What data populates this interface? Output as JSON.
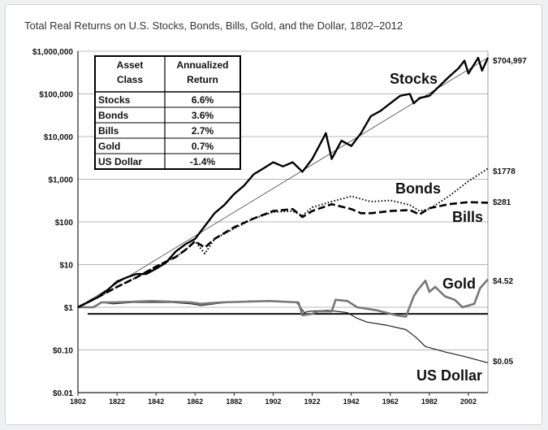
{
  "title": "Total Real Returns on U.S. Stocks, Bonds, Bills, Gold, and the Dollar, 1802–2012",
  "chart_data": {
    "type": "line",
    "title": "Total Real Returns on U.S. Stocks, Bonds, Bills, Gold, and the Dollar, 1802–2012",
    "xlabel": "",
    "ylabel": "",
    "y_scale": "log",
    "xlim": [
      1802,
      2012
    ],
    "ylim": [
      0.01,
      1000000
    ],
    "grid": true,
    "x_ticks": [
      1802,
      1822,
      1842,
      1862,
      1882,
      1902,
      1922,
      1942,
      1962,
      1982,
      2002
    ],
    "x_tick_labels": [
      "1802",
      "1822",
      "1842",
      "1862",
      "1882",
      "1902",
      "1922",
      "1942",
      "1962",
      "1982",
      "2002"
    ],
    "y_ticks": [
      0.01,
      0.1,
      1,
      10,
      100,
      1000,
      10000,
      100000,
      1000000
    ],
    "y_tick_labels": [
      "$0.01",
      "$0.10",
      "$1",
      "$10",
      "$100",
      "$1,000",
      "$10,000",
      "$100,000",
      "$1,000,000"
    ],
    "reference_line": {
      "y": 0.7,
      "x_start": 1807,
      "x_end": 2012
    },
    "series": [
      {
        "name": "Stocks",
        "end_label": "$704,997",
        "style": "solid-thick",
        "x": [
          1802,
          1807,
          1812,
          1817,
          1822,
          1827,
          1832,
          1837,
          1842,
          1847,
          1852,
          1857,
          1862,
          1867,
          1872,
          1877,
          1882,
          1887,
          1892,
          1897,
          1902,
          1907,
          1912,
          1917,
          1922,
          1927,
          1929,
          1932,
          1937,
          1942,
          1947,
          1952,
          1957,
          1962,
          1967,
          1972,
          1974,
          1977,
          1982,
          1987,
          1992,
          1997,
          2000,
          2002,
          2007,
          2009,
          2012
        ],
        "values": [
          1,
          1.3,
          1.7,
          2.5,
          4,
          5,
          6,
          6,
          8,
          11,
          20,
          30,
          40,
          80,
          160,
          250,
          450,
          700,
          1300,
          1800,
          2500,
          2000,
          2500,
          1500,
          3000,
          8000,
          12000,
          3000,
          8000,
          6000,
          12000,
          30000,
          40000,
          60000,
          90000,
          100000,
          60000,
          80000,
          90000,
          150000,
          250000,
          400000,
          600000,
          300000,
          700000,
          350000,
          704997
        ]
      },
      {
        "name": "Bonds",
        "end_label": "$1778",
        "style": "dotted",
        "x": [
          1802,
          1812,
          1822,
          1832,
          1842,
          1852,
          1857,
          1862,
          1867,
          1872,
          1882,
          1892,
          1902,
          1912,
          1917,
          1922,
          1932,
          1942,
          1952,
          1962,
          1972,
          1977,
          1982,
          1992,
          2002,
          2012
        ],
        "values": [
          1,
          1.7,
          3,
          5,
          9,
          15,
          22,
          35,
          18,
          40,
          70,
          120,
          170,
          180,
          140,
          220,
          300,
          400,
          300,
          320,
          250,
          180,
          200,
          400,
          900,
          1778
        ]
      },
      {
        "name": "Bills",
        "end_label": "$281",
        "style": "dashed",
        "x": [
          1802,
          1812,
          1822,
          1832,
          1842,
          1852,
          1857,
          1862,
          1867,
          1872,
          1882,
          1892,
          1902,
          1912,
          1917,
          1922,
          1932,
          1942,
          1947,
          1952,
          1962,
          1972,
          1977,
          1982,
          1992,
          2002,
          2012
        ],
        "values": [
          1,
          1.7,
          3,
          5,
          9,
          15,
          22,
          35,
          25,
          40,
          75,
          120,
          180,
          200,
          130,
          180,
          260,
          200,
          160,
          160,
          180,
          190,
          150,
          210,
          260,
          290,
          281
        ]
      },
      {
        "name": "Gold",
        "end_label": "$4.52",
        "style": "solid-gray",
        "x": [
          1802,
          1810,
          1814,
          1820,
          1840,
          1860,
          1865,
          1875,
          1900,
          1915,
          1917,
          1922,
          1925,
          1932,
          1934,
          1940,
          1945,
          1955,
          1965,
          1970,
          1974,
          1976,
          1980,
          1982,
          1985,
          1990,
          1995,
          1999,
          2005,
          2008,
          2012
        ],
        "values": [
          1,
          1,
          1.3,
          1.3,
          1.4,
          1.3,
          1.2,
          1.3,
          1.4,
          1.3,
          0.65,
          0.7,
          0.8,
          0.8,
          1.5,
          1.4,
          1,
          0.85,
          0.65,
          0.6,
          1.8,
          2.5,
          4.2,
          2.3,
          3,
          1.8,
          1.5,
          1,
          1.2,
          2.8,
          4.52
        ]
      },
      {
        "name": "US Dollar",
        "end_label": "$0.05",
        "style": "solid-thin",
        "x": [
          1802,
          1810,
          1814,
          1820,
          1830,
          1840,
          1850,
          1860,
          1865,
          1875,
          1890,
          1900,
          1914,
          1918,
          1920,
          1930,
          1940,
          1945,
          1950,
          1960,
          1970,
          1975,
          1980,
          1990,
          2000,
          2012
        ],
        "values": [
          1,
          1,
          1.3,
          1.2,
          1.3,
          1.3,
          1.3,
          1.2,
          1.1,
          1.25,
          1.4,
          1.4,
          1.3,
          0.75,
          0.8,
          0.85,
          0.75,
          0.55,
          0.45,
          0.38,
          0.3,
          0.2,
          0.12,
          0.09,
          0.07,
          0.05
        ]
      }
    ],
    "table": {
      "headers": [
        "Asset\nClass",
        "Annualized\nReturn"
      ],
      "header_lines": [
        [
          "Asset",
          "Class"
        ],
        [
          "Annualized",
          "Return"
        ]
      ],
      "rows": [
        [
          "Stocks",
          "6.6%"
        ],
        [
          "Bonds",
          "3.6%"
        ],
        [
          "Bills",
          "2.7%"
        ],
        [
          "Gold",
          "0.7%"
        ],
        [
          "US Dollar",
          "-1.4%"
        ]
      ]
    }
  }
}
